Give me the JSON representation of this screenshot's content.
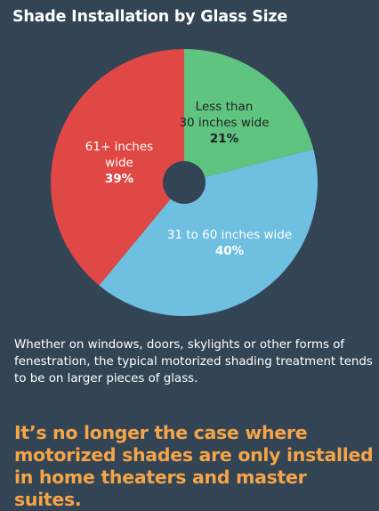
{
  "title": "Shade Installation by Glass Size",
  "description": "Whether on windows, doors, skylights or other forms of fenestration, the typical motorized shading treatment tends to be on larger pieces of glass.",
  "callout": "It’s no longer the case where motorized shades are only installed in home theaters and master suites.",
  "colors": {
    "background": "#334455",
    "hole": "#334455",
    "accent": "#f5a547"
  },
  "chart_data": {
    "type": "pie",
    "title": "Shade Installation by Glass Size",
    "slices": [
      {
        "label": "Less than 30 inches wide",
        "value": 21,
        "value_label": "21%",
        "color": "#5fc480",
        "label_color": "#222222"
      },
      {
        "label": "31 to 60 inches wide",
        "value": 40,
        "value_label": "40%",
        "color": "#6fbfe0",
        "label_color": "#ffffff"
      },
      {
        "label": "61+ inches wide",
        "value": 39,
        "value_label": "39%",
        "color": "#e04845",
        "label_color": "#ffffff"
      }
    ]
  }
}
